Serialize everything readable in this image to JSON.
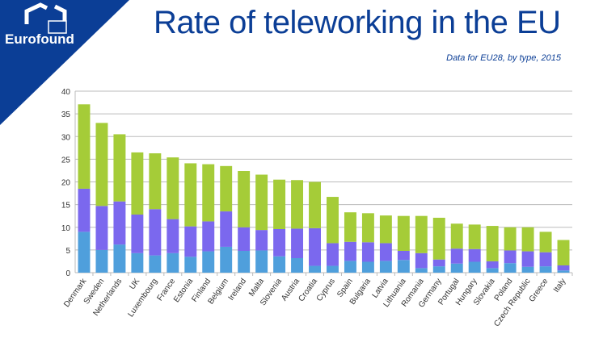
{
  "header": {
    "title": "Rate of teleworking in the EU",
    "subtitle": "Data for EU28, by type, 2015",
    "brand": "Eurofound"
  },
  "colors": {
    "brand": "#0b3e96",
    "series1": "#4f9fdc",
    "series2": "#7b68ee",
    "series3": "#a5cc38"
  },
  "chart_data": {
    "type": "bar",
    "stacked": true,
    "title": "Rate of teleworking in the EU",
    "subtitle": "Data for EU28, by type, 2015",
    "ylim": [
      0,
      40
    ],
    "yticks": [
      "0",
      "5",
      "10",
      "15",
      "20",
      "25",
      "30",
      "35",
      "40"
    ],
    "grid": true,
    "categories": [
      "Denmark",
      "Sweden",
      "Netherlands",
      "UK",
      "Luxembourg",
      "France",
      "Estonia",
      "Finland",
      "Belgium",
      "Ireland",
      "Malta",
      "Slovenia",
      "Austria",
      "Croatia",
      "Cyprus",
      "Spain",
      "Bulgaria",
      "Latvia",
      "Lithuania",
      "Romania",
      "Germany",
      "Portugal",
      "Hungary",
      "Slovakia",
      "Poland",
      "Czech Republic",
      "Greece",
      "Italy"
    ],
    "series": [
      {
        "color": "#4f9fdc",
        "values": [
          9,
          5,
          6.2,
          4.3,
          3.8,
          4.3,
          3.5,
          4.7,
          5.7,
          4.8,
          4.9,
          3.6,
          3.2,
          1.5,
          1.5,
          2.6,
          2.4,
          2.6,
          2.8,
          1,
          1.4,
          2,
          2.4,
          1,
          2.1,
          1.3,
          1.4,
          0.5
        ]
      },
      {
        "color": "#7b68ee",
        "values": [
          9.5,
          9.7,
          9.5,
          8.5,
          10.2,
          7.5,
          6.7,
          6.6,
          7.8,
          5.2,
          4.5,
          6,
          6.5,
          8.3,
          5,
          4.2,
          4.3,
          3.9,
          2,
          3.3,
          1.5,
          3.3,
          2.8,
          1.5,
          2.8,
          3.4,
          3.1,
          1.1
        ]
      },
      {
        "color": "#a5cc38",
        "values": [
          18.6,
          18.3,
          14.8,
          13.7,
          12.3,
          13.6,
          13.9,
          12.6,
          10,
          12.4,
          12.2,
          10.9,
          10.7,
          10.2,
          10.2,
          6.5,
          6.4,
          6.1,
          7.7,
          8.2,
          9.2,
          5.5,
          5.4,
          7.8,
          5.1,
          5.3,
          4.5,
          5.6
        ]
      }
    ]
  }
}
